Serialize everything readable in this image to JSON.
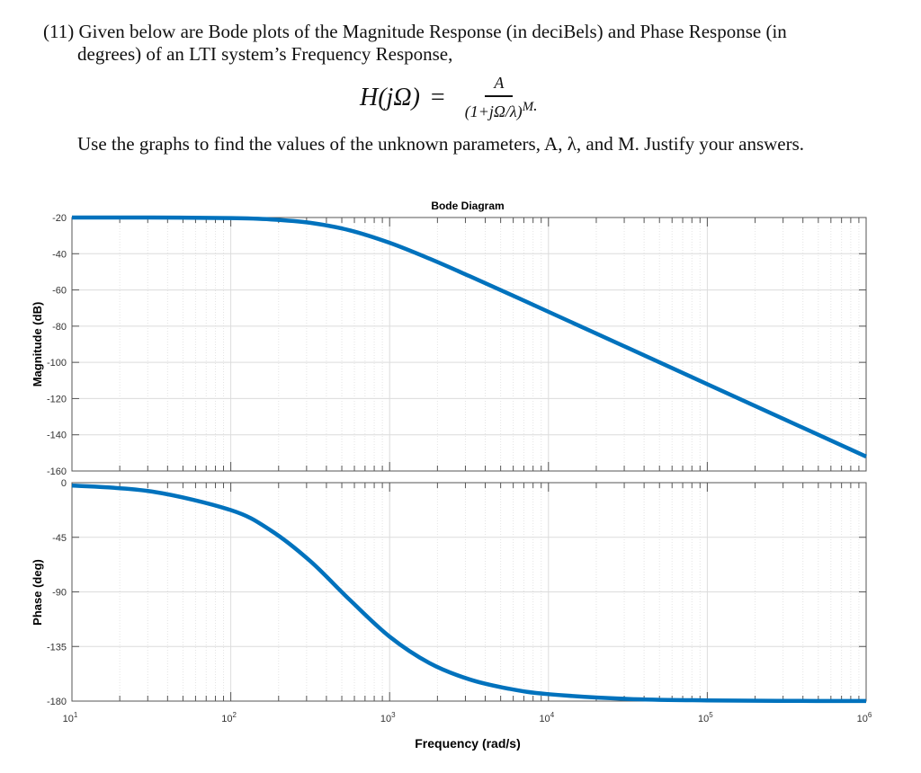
{
  "question": {
    "line1": "(11)  Given below are Bode plots of the Magnitude Response (in deciBels) and Phase Response (in",
    "line2": "degrees) of  an LTI system’s Frequency Response,",
    "formula_lhs": "H(jΩ)",
    "formula_eq": "=",
    "formula_num": "A",
    "formula_den": "(1+jΩ/λ)",
    "formula_exp": "M",
    "formula_end": ".",
    "line3": "Use the graphs to find the values of the unknown parameters, A, λ, and M. Justify your answers."
  },
  "chart_data": {
    "type": "line",
    "title": "Bode Diagram",
    "xlabel": "Frequency  (rad/s)",
    "xscale": "log",
    "xlim": [
      10,
      1000000
    ],
    "x_tick_labels": [
      {
        "base": "10",
        "exp": "1"
      },
      {
        "base": "10",
        "exp": "2"
      },
      {
        "base": "10",
        "exp": "3"
      },
      {
        "base": "10",
        "exp": "4"
      },
      {
        "base": "10",
        "exp": "5"
      },
      {
        "base": "10",
        "exp": "6"
      }
    ],
    "grid": true,
    "color": "#0072BD",
    "x": [
      10,
      31.6,
      100,
      177.8,
      316.2,
      562.3,
      1000,
      1778,
      3162,
      5623,
      10000,
      31623,
      100000,
      316228,
      1000000
    ],
    "panels": [
      {
        "ylabel": "Magnitude (dB)",
        "ylim": [
          -160,
          -20
        ],
        "yticks": [
          -20,
          -40,
          -60,
          -80,
          -100,
          -120,
          -140,
          -160
        ],
        "values": [
          -20.0,
          -20.02,
          -20.34,
          -21.03,
          -22.92,
          -27.1,
          -33.98,
          -42.7,
          -52.26,
          -62.1,
          -72.06,
          -92.04,
          -112.04,
          -132.04,
          -152.04
        ]
      },
      {
        "ylabel": "Phase (deg)",
        "ylim": [
          -180,
          0
        ],
        "yticks": [
          0,
          -45,
          -90,
          -135,
          -180
        ],
        "values": [
          -2.29,
          -7.23,
          -22.6,
          -39.2,
          -64.6,
          -96.7,
          -126.9,
          -148.6,
          -162.0,
          -169.8,
          -174.3,
          -178.2,
          -179.43,
          -179.82,
          -179.94
        ]
      }
    ]
  }
}
